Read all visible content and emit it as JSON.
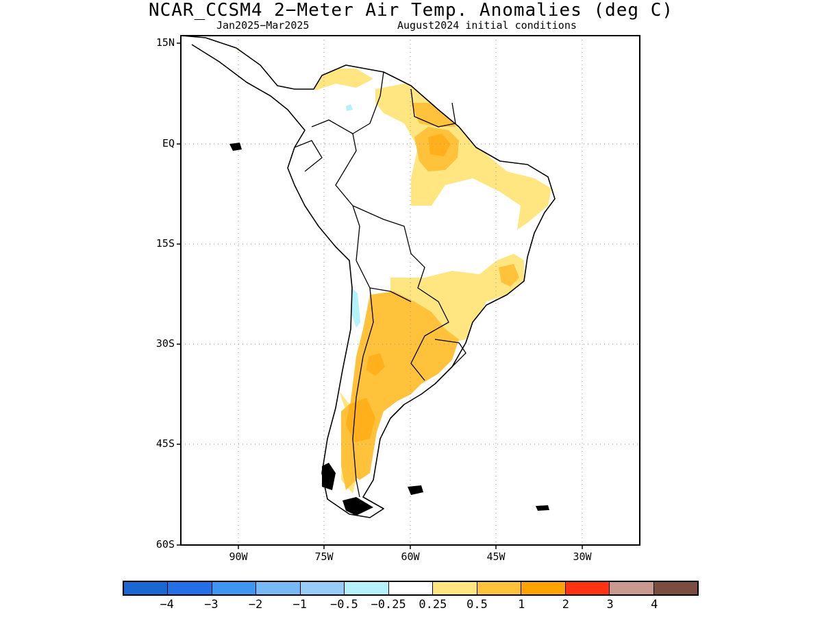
{
  "title": "NCAR_CCSM4 2−Meter Air Temp. Anomalies (deg C)",
  "subtitle_left": "Jan2025−Mar2025",
  "subtitle_right": "August2024 initial conditions",
  "map": {
    "region": "South America",
    "lat_labels": [
      "15N",
      "EQ",
      "15S",
      "30S",
      "45S",
      "60S"
    ],
    "lon_labels": [
      "90W",
      "75W",
      "60W",
      "45W",
      "30W"
    ],
    "grid": "dotted"
  },
  "legend": {
    "colors": [
      "#1a66d2",
      "#246fe8",
      "#3f95f2",
      "#78b8f5",
      "#98ccf8",
      "#b3f2fa",
      "#ffffff",
      "#ffe680",
      "#ffc23a",
      "#ffa300",
      "#ff3311",
      "#c99b90",
      "#7a4d40"
    ],
    "labels": [
      "−4",
      "−3",
      "−2",
      "−1",
      "−0.5",
      "−0.25",
      "0.25",
      "0.5",
      "1",
      "2",
      "3",
      "4"
    ]
  },
  "anomaly_regions": [
    {
      "area": "Northern Brazil / Guianas",
      "category": "0.25 to 0.5"
    },
    {
      "area": "Lower Amazon basin",
      "category": "0.5 to 1"
    },
    {
      "area": "Northern Argentina / Paraguay",
      "category": "0.5 to 1"
    },
    {
      "area": "Patagonia",
      "category": "0.5 to 1"
    },
    {
      "area": "Southeast Brazil",
      "category": "0.25 to 0.5"
    },
    {
      "area": "Central Chile coast",
      "category": "-0.5 to -0.25"
    }
  ]
}
